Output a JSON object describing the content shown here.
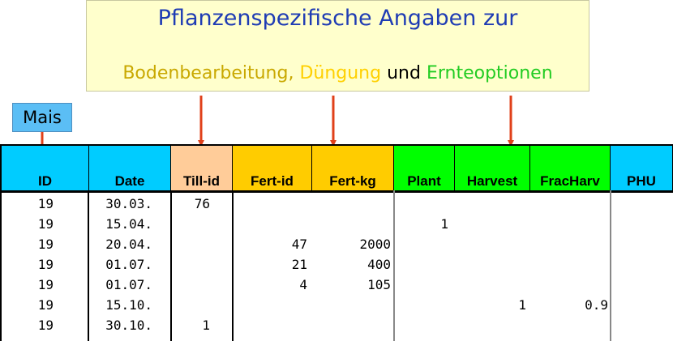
{
  "banner": {
    "line1": "Pflanzenspezifische Angaben zur",
    "bodenbearbeitung": "Bodenbearbeitung,",
    "duengung": "Düngung",
    "und": "und",
    "ernteoptionen": "Ernteoptionen"
  },
  "mais_label": "Mais",
  "colors": {
    "banner_bg": "#ffffcc",
    "id_date_phu_header": "#00ccff",
    "till_header": "#ffcc99",
    "fert_header": "#ffcc00",
    "plant_header": "#00ff00",
    "arrow": "#e0401a"
  },
  "table": {
    "headers": [
      "ID",
      "Date",
      "Till-id",
      "Fert-id",
      "Fert-kg",
      "Plant",
      "Harvest",
      "FracHarv",
      "PHU"
    ],
    "rows": [
      [
        "19",
        "30.03.",
        "76",
        "",
        "",
        "",
        "",
        "",
        ""
      ],
      [
        "19",
        "15.04.",
        "",
        "",
        "",
        "1",
        "",
        "",
        ""
      ],
      [
        "19",
        "20.04.",
        "",
        "47",
        "2000",
        "",
        "",
        "",
        ""
      ],
      [
        "19",
        "01.07.",
        "",
        "21",
        "400",
        "",
        "",
        "",
        ""
      ],
      [
        "19",
        "01.07.",
        "",
        "4",
        "105",
        "",
        "",
        "",
        ""
      ],
      [
        "19",
        "15.10.",
        "",
        "",
        "",
        "",
        "1",
        "0.9",
        ""
      ],
      [
        "19",
        "30.10.",
        "1",
        "",
        "",
        "",
        "",
        "",
        ""
      ]
    ]
  }
}
